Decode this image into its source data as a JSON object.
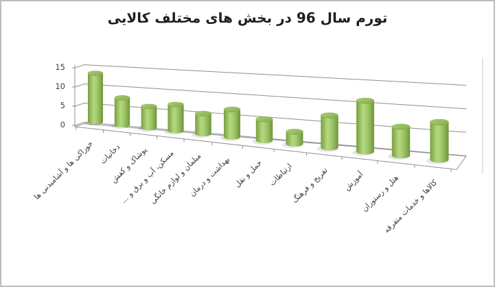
{
  "title": {
    "text": "تورم سال 96 در بخش های مختلف کالایی",
    "color": "#1f1f1f"
  },
  "chart_data": {
    "type": "bar",
    "subtype": "3d-cylinder",
    "title": "تورم سال 96 در بخش های مختلف کالایی",
    "categories": [
      "خوراکی ها و آشامیدنی ها",
      "دخانیات",
      "پوشاک و کفش",
      "مسکن، آب و برق و ...",
      "مبلمان و لوازم خانگی",
      "بهداشت و درمان",
      "حمل و نقل",
      "ارتباطات",
      "تفریح و فرهنگ",
      "آموزش",
      "هتل و رستوران",
      "کالاها و خدمات متفرقه"
    ],
    "values": [
      12,
      6.5,
      5,
      6,
      4.5,
      6,
      4.5,
      2.5,
      6.5,
      10,
      5.5,
      7
    ],
    "xlabel": "",
    "ylabel": "",
    "ylim": [
      0,
      15
    ],
    "yticks": [
      0,
      5,
      10,
      15
    ],
    "grid": true,
    "legend": false,
    "colors": {
      "bar_mid": "#9cc45f",
      "bar_light": "#b4d880",
      "bar_dark": "#6f943a",
      "bar_top_light": "#aacf70",
      "bar_top_dark": "#8ab14e",
      "gridline": "#8f8f8f",
      "axis_text": "#3f3f3f",
      "outer_border": "#bdbdbd"
    }
  }
}
